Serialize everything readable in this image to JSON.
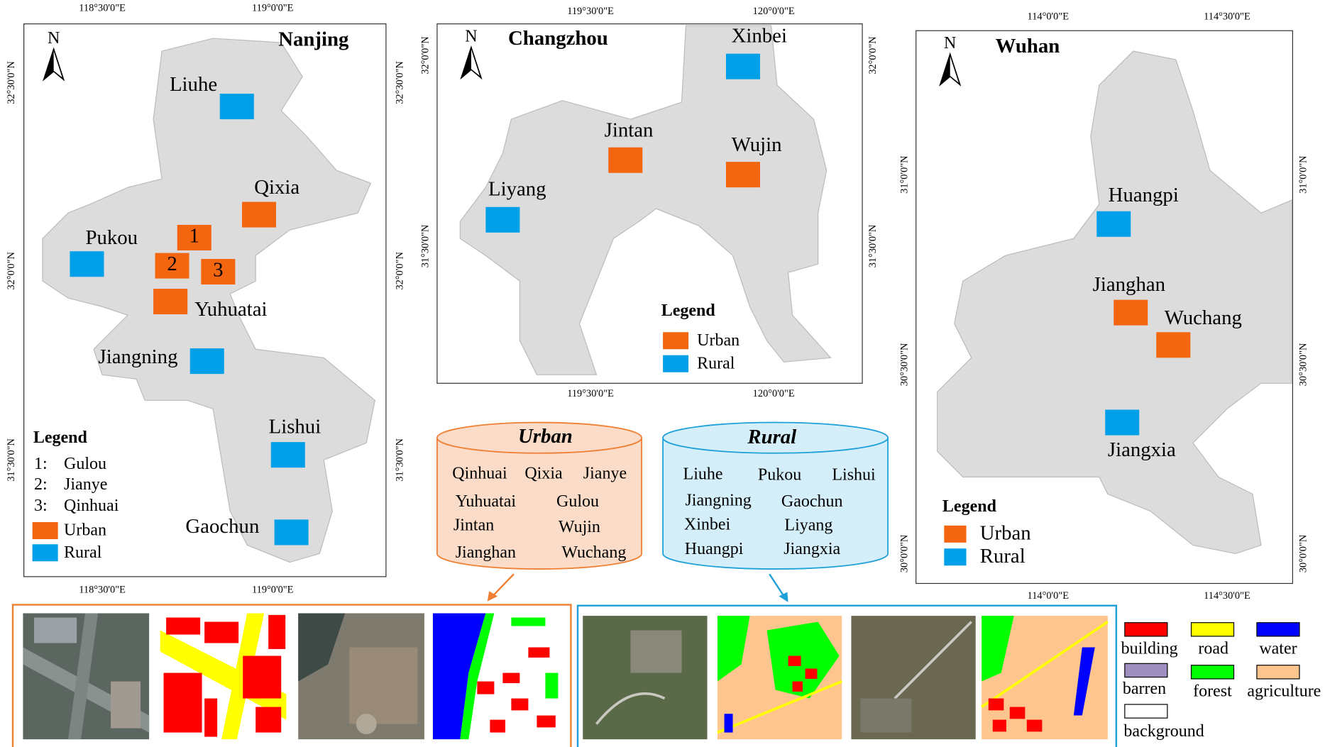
{
  "maps": [
    {
      "title": "Nanjing",
      "x_labels": [
        "118°30'0\"E",
        "119°0'0\"E"
      ],
      "y_labels": [
        "32°30'0\"N",
        "32°0'0\"N",
        "31°30'0\"N"
      ],
      "places": [
        {
          "label": "Liuhe",
          "type": "rural"
        },
        {
          "label": "Qixia",
          "type": "urban"
        },
        {
          "label": "Pukou",
          "type": "rural"
        },
        {
          "label": "1",
          "type": "urban"
        },
        {
          "label": "2",
          "type": "urban"
        },
        {
          "label": "3",
          "type": "urban"
        },
        {
          "label": "Yuhuatai",
          "type": "urban"
        },
        {
          "label": "Jiangning",
          "type": "rural"
        },
        {
          "label": "Lishui",
          "type": "rural"
        },
        {
          "label": "Gaochun",
          "type": "rural"
        }
      ],
      "legend": {
        "title": "Legend",
        "keys": [
          {
            "key": "1:",
            "label": "Gulou"
          },
          {
            "key": "2:",
            "label": "Jianye"
          },
          {
            "key": "3:",
            "label": "Qinhuai"
          }
        ],
        "entries": [
          {
            "label": "Urban",
            "type": "urban"
          },
          {
            "label": "Rural",
            "type": "rural"
          }
        ]
      }
    },
    {
      "title": "Changzhou",
      "x_labels": [
        "119°30'0\"E",
        "120°0'0\"E"
      ],
      "y_labels": [
        "32°0'0\"N",
        "31°30'0\"N"
      ],
      "places": [
        {
          "label": "Xinbei",
          "type": "rural"
        },
        {
          "label": "Jintan",
          "type": "urban"
        },
        {
          "label": "Wujin",
          "type": "urban"
        },
        {
          "label": "Liyang",
          "type": "rural"
        }
      ],
      "legend": {
        "title": "Legend",
        "keys": [],
        "entries": [
          {
            "label": "Urban",
            "type": "urban"
          },
          {
            "label": "Rural",
            "type": "rural"
          }
        ]
      }
    },
    {
      "title": "Wuhan",
      "x_labels": [
        "114°0'0\"E",
        "114°30'0\"E"
      ],
      "y_labels": [
        "31°0'0\"N",
        "30°30'0\"N",
        "30°0'0\"N"
      ],
      "places": [
        {
          "label": "Huangpi",
          "type": "rural"
        },
        {
          "label": "Jianghan",
          "type": "urban"
        },
        {
          "label": "Wuchang",
          "type": "urban"
        },
        {
          "label": "Jiangxia",
          "type": "rural"
        }
      ],
      "legend": {
        "title": "Legend",
        "keys": [],
        "entries": [
          {
            "label": "Urban",
            "type": "urban"
          },
          {
            "label": "Rural",
            "type": "rural"
          }
        ]
      }
    }
  ],
  "colors": {
    "urban": "#f4650f",
    "rural": "#00a0e9"
  },
  "north": "N",
  "groups": [
    {
      "title": "Urban",
      "members": [
        "Qinhuai",
        "Qixia",
        "Jianye",
        "Yuhuatai",
        "Gulou",
        "Jintan",
        "Wujin",
        "Jianghan",
        "Wuchang"
      ]
    },
    {
      "title": "Rural",
      "members": [
        "Liuhe",
        "Pukou",
        "Lishui",
        "Jiangning",
        "Gaochun",
        "Xinbei",
        "Liyang",
        "Huangpi",
        "Jiangxia"
      ]
    }
  ],
  "class_legend": [
    {
      "label": "building",
      "color": "#ff0000"
    },
    {
      "label": "road",
      "color": "#ffff00"
    },
    {
      "label": "water",
      "color": "#0000ff"
    },
    {
      "label": "barren",
      "color": "#9f8fc0"
    },
    {
      "label": "forest",
      "color": "#00ff00"
    },
    {
      "label": "agriculture",
      "color": "#ffc58f"
    },
    {
      "label": "background",
      "color": "#ffffff"
    }
  ]
}
